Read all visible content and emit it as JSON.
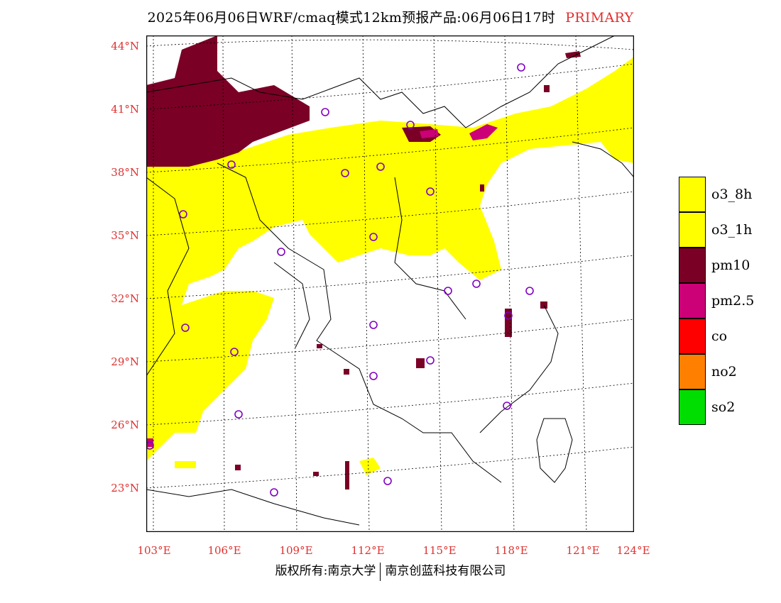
{
  "title": {
    "text": "2025年06月06日WRF/cmaq模式12km预报产品:06月06日17时",
    "tag": "PRIMARY"
  },
  "map": {
    "lat_labels": [
      "44°N",
      "41°N",
      "38°N",
      "35°N",
      "32°N",
      "29°N",
      "26°N",
      "23°N"
    ],
    "lon_labels": [
      "103°E",
      "106°E",
      "109°E",
      "112°E",
      "115°E",
      "118°E",
      "121°E",
      "124°E"
    ],
    "colors": {
      "o3": "#ffff00",
      "pm10": "#7a0026",
      "pm25": "#cc0077",
      "station": "#8000c0",
      "boundary": "#000000"
    }
  },
  "legend": [
    {
      "label": "o3_8h",
      "color": "#ffff00"
    },
    {
      "label": "o3_1h",
      "color": "#ffff00"
    },
    {
      "label": "pm10",
      "color": "#7a0026"
    },
    {
      "label": "pm2.5",
      "color": "#cc0077"
    },
    {
      "label": "co",
      "color": "#ff0000"
    },
    {
      "label": "no2",
      "color": "#ff8000"
    },
    {
      "label": "so2",
      "color": "#00dd00"
    }
  ],
  "footer": {
    "left": "版权所有:南京大学",
    "right": "南京创蓝科技有限公司"
  }
}
